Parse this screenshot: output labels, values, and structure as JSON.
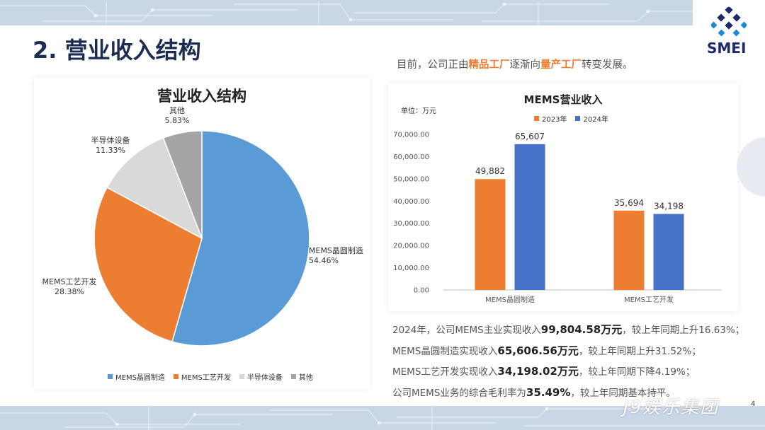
{
  "page": {
    "title": "2. 营业收入结构",
    "logo_text": "SMEI",
    "subtitle_parts": [
      "目前，公司正由",
      "精品工厂",
      "逐渐向",
      "量产工厂",
      "转变发展。"
    ],
    "page_number": "4",
    "watermark": "J9娱乐集团"
  },
  "colors": {
    "blue": "#5b9bd5",
    "orange": "#ed7d31",
    "gray": "#d9d9d9",
    "darkgray": "#a5a5a5",
    "bar_2024": "#4472c4"
  },
  "pie": {
    "legend": [
      "MEMS晶圆制造",
      "MEMS工艺开发",
      "半导体设备",
      "其他"
    ]
  },
  "bar": {
    "unit_label": "单位：万元",
    "legend": [
      "2023年",
      "2024年"
    ]
  },
  "chart_data": [
    {
      "type": "pie",
      "title": "营业收入结构",
      "slices": [
        {
          "label": "MEMS晶圆制造",
          "value": 54.46,
          "display": "54.46%"
        },
        {
          "label": "MEMS工艺开发",
          "value": 28.38,
          "display": "28.38%"
        },
        {
          "label": "半导体设备",
          "value": 11.33,
          "display": "11.33%"
        },
        {
          "label": "其他",
          "value": 5.83,
          "display": "5.83%"
        }
      ],
      "legend_position": "bottom"
    },
    {
      "type": "bar",
      "title": "MEMS营业收入",
      "categories": [
        "MEMS晶圆制造",
        "MEMS工艺开发"
      ],
      "series": [
        {
          "name": "2023年",
          "values": [
            49882,
            35694
          ],
          "labels": [
            "49,882",
            "35,694"
          ]
        },
        {
          "name": "2024年",
          "values": [
            65607,
            34198
          ],
          "labels": [
            "65,607",
            "34,198"
          ]
        }
      ],
      "ylim": [
        0,
        70000
      ],
      "yticks": [
        "0.00",
        "10,000.00",
        "20,000.00",
        "30,000.00",
        "40,000.00",
        "50,000.00",
        "60,000.00",
        "70,000.00"
      ],
      "legend_position": "top",
      "grid": false
    }
  ],
  "notes": [
    {
      "pre": "2024年，公司MEMS主业实现收入",
      "strong": "99,804.58万元",
      "post": "，较上年同期上升16.63%；"
    },
    {
      "pre": "MEMS晶圆制造实现收入",
      "strong": "65,606.56万元",
      "post": "，较上年同期上升31.52%；"
    },
    {
      "pre": "MEMS工艺开发实现收入",
      "strong": "34,198.02万元",
      "post": "，较上年同期下降4.19%；"
    },
    {
      "pre": "公司MEMS业务的综合毛利率为",
      "strong": "35.49%",
      "post": "，较上年同期基本持平。"
    }
  ]
}
